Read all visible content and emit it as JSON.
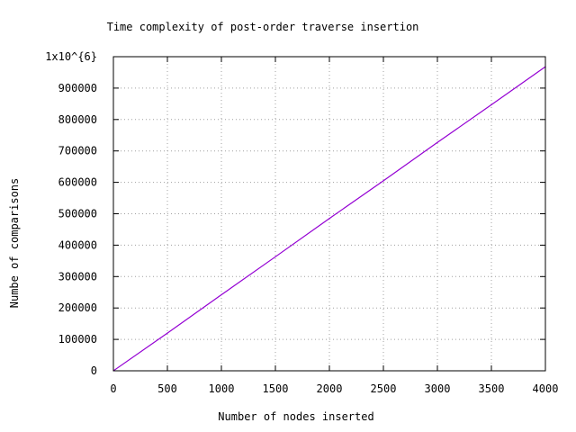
{
  "chart_data": {
    "type": "line",
    "title": "Time complexity of post-order traverse insertion",
    "xlabel": "Number of nodes inserted",
    "ylabel": "Numbe of comparisons",
    "xlim": [
      0,
      4000
    ],
    "ylim": [
      0,
      1000000
    ],
    "x_ticks": [
      "0",
      "500",
      "1000",
      "1500",
      "2000",
      "2500",
      "3000",
      "3500",
      "4000"
    ],
    "y_ticks": [
      "0",
      "100000",
      "200000",
      "300000",
      "400000",
      "500000",
      "600000",
      "700000",
      "800000",
      "900000",
      "1x10^{6}"
    ],
    "grid": true,
    "legend": "none",
    "series": [
      {
        "color": "#9400d3",
        "x": [
          0,
          500,
          1000,
          1500,
          2000,
          2500,
          3000,
          3500,
          4000
        ],
        "values": [
          0,
          120000,
          242000,
          363000,
          485000,
          605000,
          727000,
          847000,
          968000
        ]
      }
    ]
  }
}
